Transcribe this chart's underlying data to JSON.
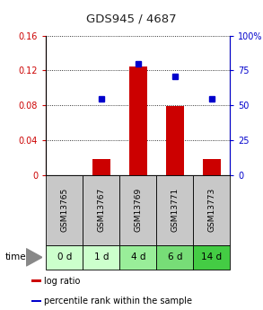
{
  "title": "GDS945 / 4687",
  "samples": [
    "GSM13765",
    "GSM13767",
    "GSM13769",
    "GSM13771",
    "GSM13773"
  ],
  "time_labels": [
    "0 d",
    "1 d",
    "4 d",
    "6 d",
    "14 d"
  ],
  "log_ratio": [
    0.0,
    0.018,
    0.125,
    0.079,
    0.018
  ],
  "percentile": [
    null,
    55,
    80,
    71,
    55
  ],
  "ylim_left": [
    0,
    0.16
  ],
  "ylim_right": [
    0,
    100
  ],
  "yticks_left": [
    0,
    0.04,
    0.08,
    0.12,
    0.16
  ],
  "ytick_labels_left": [
    "0",
    "0.04",
    "0.08",
    "0.12",
    "0.16"
  ],
  "yticks_right": [
    0,
    25,
    50,
    75,
    100
  ],
  "ytick_labels_right": [
    "0",
    "25",
    "50",
    "75",
    "100%"
  ],
  "bar_color": "#cc0000",
  "point_color": "#0000cc",
  "bar_width": 0.5,
  "sample_bg_color": "#c8c8c8",
  "time_colors": [
    "#ccffcc",
    "#ccffcc",
    "#99ee99",
    "#77dd77",
    "#44cc44"
  ],
  "legend_bar_label": "log ratio",
  "legend_point_label": "percentile rank within the sample",
  "time_label": "time",
  "title_color": "#222222",
  "left_axis_color": "#cc0000",
  "right_axis_color": "#0000cc"
}
